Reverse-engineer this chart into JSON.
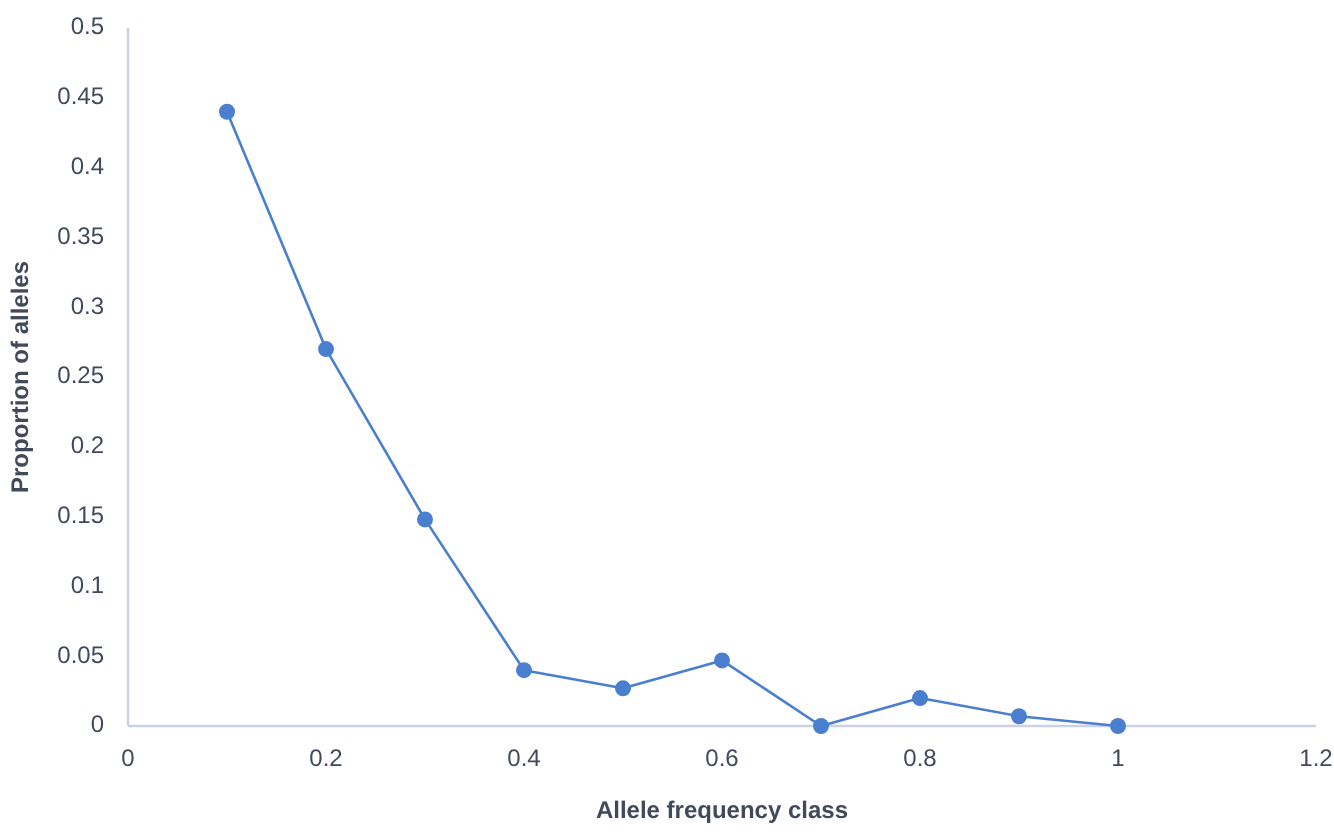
{
  "chart_data": {
    "type": "line",
    "xlabel": "Allele frequency class",
    "ylabel": "Proportion of alleles",
    "x": [
      0.1,
      0.2,
      0.3,
      0.4,
      0.5,
      0.6,
      0.7,
      0.8,
      0.9,
      1
    ],
    "series": [
      {
        "color": "#4a7fcf",
        "values": [
          0.44,
          0.27,
          0.148,
          0.04,
          0.027,
          0.047,
          0,
          0.02,
          0.007,
          0
        ]
      }
    ],
    "xlim": [
      0,
      1.2
    ],
    "xticks": [
      0,
      0.2,
      0.4,
      0.6,
      0.8,
      1,
      1.2
    ],
    "ylim": [
      0,
      0.5
    ],
    "yticks": [
      0,
      0.05,
      0.1,
      0.15,
      0.2,
      0.25,
      0.3,
      0.35,
      0.4,
      0.45,
      0.5
    ],
    "grid": false,
    "marker": "circle",
    "line_style": "solid"
  }
}
